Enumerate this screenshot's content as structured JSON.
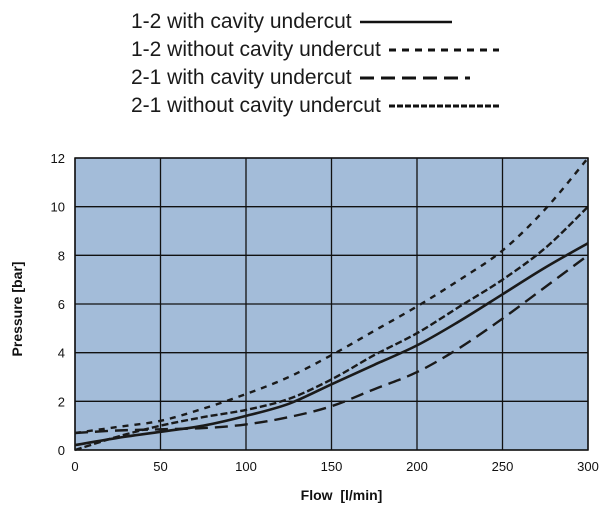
{
  "chart_data": {
    "type": "line",
    "xlabel": "Flow  [l/min]",
    "ylabel": "Pressure [bar]",
    "xlim": [
      0,
      300
    ],
    "ylim": [
      0,
      12
    ],
    "x_ticks": [
      "0",
      "50",
      "100",
      "150",
      "200",
      "250",
      "300"
    ],
    "y_ticks": [
      "0",
      "2",
      "4",
      "6",
      "8",
      "10",
      "12"
    ],
    "grid": true,
    "legend_position": "top-center",
    "plot_background": "#a3bcd9",
    "series": [
      {
        "name": "1-2 with cavity undercut",
        "style": "solid",
        "x": [
          0,
          25,
          50,
          75,
          100,
          125,
          150,
          175,
          200,
          225,
          250,
          275,
          300
        ],
        "y": [
          0.2,
          0.5,
          0.75,
          1.0,
          1.4,
          1.9,
          2.7,
          3.5,
          4.3,
          5.3,
          6.4,
          7.5,
          8.5
        ]
      },
      {
        "name": "1-2 without cavity undercut",
        "style": "dotted",
        "x": [
          0,
          25,
          50,
          75,
          100,
          125,
          150,
          175,
          200,
          225,
          250,
          275,
          300
        ],
        "y": [
          0.7,
          0.95,
          1.2,
          1.7,
          2.3,
          3.0,
          3.9,
          4.9,
          5.9,
          7.0,
          8.2,
          9.9,
          12.0
        ]
      },
      {
        "name": "2-1 with cavity undercut",
        "style": "long-dash",
        "x": [
          0,
          25,
          50,
          75,
          100,
          125,
          150,
          175,
          200,
          225,
          250,
          275,
          300
        ],
        "y": [
          0.7,
          0.8,
          0.85,
          0.9,
          1.05,
          1.35,
          1.8,
          2.5,
          3.2,
          4.2,
          5.4,
          6.7,
          8.0
        ]
      },
      {
        "name": "2-1 without cavity undercut",
        "style": "short-dash",
        "x": [
          0,
          25,
          50,
          75,
          100,
          125,
          150,
          175,
          200,
          225,
          250,
          275,
          300
        ],
        "y": [
          0.0,
          0.55,
          1.0,
          1.35,
          1.65,
          2.1,
          2.9,
          3.9,
          4.8,
          5.9,
          7.0,
          8.3,
          10.0
        ]
      }
    ]
  }
}
